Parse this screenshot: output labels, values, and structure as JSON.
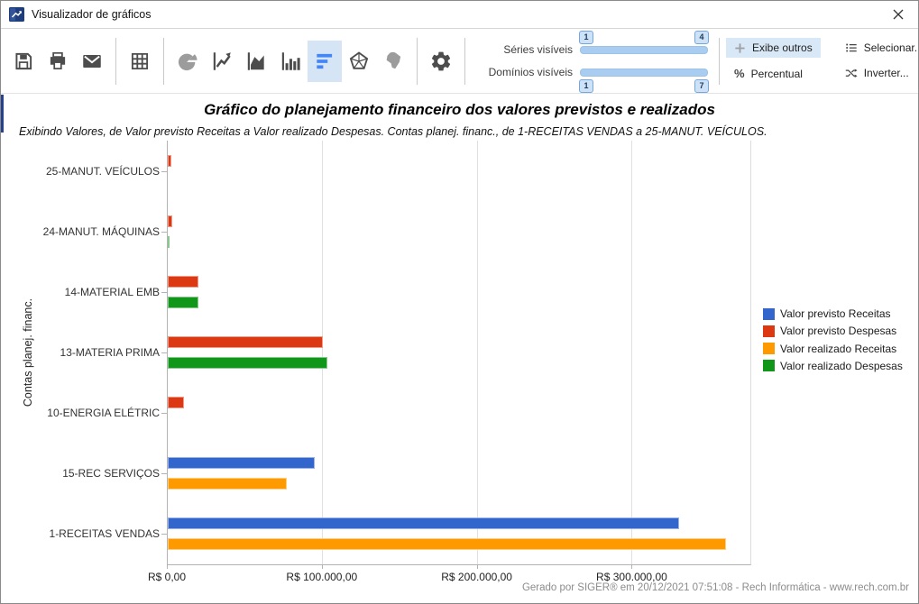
{
  "window": {
    "title": "Visualizador de gráficos",
    "close_glyph": "✕"
  },
  "toolbar": {
    "icons": [
      {
        "name": "save-icon"
      },
      {
        "name": "print-icon"
      },
      {
        "name": "email-icon"
      },
      {
        "separator": true
      },
      {
        "name": "table-icon"
      },
      {
        "separator": true
      },
      {
        "name": "pie-chart-icon",
        "disabled": true
      },
      {
        "name": "line-chart-icon"
      },
      {
        "name": "area-chart-icon"
      },
      {
        "name": "bar-chart-icon"
      },
      {
        "name": "horizontal-bar-chart-icon",
        "selected": true
      },
      {
        "name": "radar-chart-icon"
      },
      {
        "name": "brazil-map-icon",
        "disabled": true
      },
      {
        "separator": true
      },
      {
        "name": "settings-gear-icon"
      },
      {
        "separator": true
      }
    ],
    "sliders": {
      "series": {
        "label": "Séries visíveis",
        "min": "1",
        "max": "4"
      },
      "domains": {
        "label": "Domínios visíveis",
        "min": "1",
        "max": "7"
      }
    },
    "actions": [
      {
        "label": "Exibe outros",
        "icon": "plus-icon",
        "active": true
      },
      {
        "label": "Percentual",
        "icon": "percent-icon",
        "active": false
      },
      {
        "label": "Selecionar...",
        "icon": "list-icon",
        "active": false
      },
      {
        "label": "Inverter...",
        "icon": "shuffle-icon",
        "active": false
      }
    ]
  },
  "colors": {
    "toolbar_selected_bg": "#d5e5f6",
    "action_active_bg": "#d9e8f7",
    "slider_track": "#a9cdf0",
    "axis": "#b3b3b3",
    "grid": "#e0e0e0"
  },
  "chart_data": {
    "type": "bar",
    "orientation": "horizontal",
    "title": "Gráfico do planejamento financeiro dos valores previstos e realizados",
    "subtitle": "Exibindo Valores, de Valor previsto Receitas a Valor realizado Despesas. Contas planej. financ., de 1-RECEITAS VENDAS a 25-MANUT. VEÍCULOS.",
    "xlabel": "",
    "ylabel": "Contas planej. financ.",
    "categories": [
      "25-MANUT. VEÍCULOS",
      "24-MANUT. MÁQUINAS",
      "14-MATERIAL EMB",
      "13-MATERIA PRIMA",
      "10-ENERGIA ELÉTRIC",
      "15-REC SERVIÇOS",
      "1-RECEITAS VENDAS"
    ],
    "series": [
      {
        "name": "Valor previsto Receitas",
        "color": "#3366cc",
        "values": [
          0,
          0,
          0,
          0,
          0,
          95000,
          330000
        ]
      },
      {
        "name": "Valor previsto Despesas",
        "color": "#dc3912",
        "values": [
          2300,
          2700,
          20000,
          100000,
          10500,
          0,
          0
        ]
      },
      {
        "name": "Valor realizado Receitas",
        "color": "#ff9900",
        "values": [
          0,
          0,
          0,
          0,
          0,
          77000,
          360000
        ]
      },
      {
        "name": "Valor realizado Despesas",
        "color": "#109618",
        "values": [
          0,
          1200,
          19500,
          103000,
          0,
          0,
          0
        ]
      }
    ],
    "x_ticks": [
      {
        "value": 0,
        "label": "R$ 0,00"
      },
      {
        "value": 100000,
        "label": "R$ 100.000,00"
      },
      {
        "value": 200000,
        "label": "R$ 200.000,00"
      },
      {
        "value": 300000,
        "label": "R$ 300.000,00"
      }
    ],
    "xlim": [
      0,
      376000
    ],
    "grid": true,
    "legend_position": "right"
  },
  "footer": {
    "text": "Gerado por SIGER® em 20/12/2021 07:51:08 - Rech Informática - www.rech.com.br"
  }
}
